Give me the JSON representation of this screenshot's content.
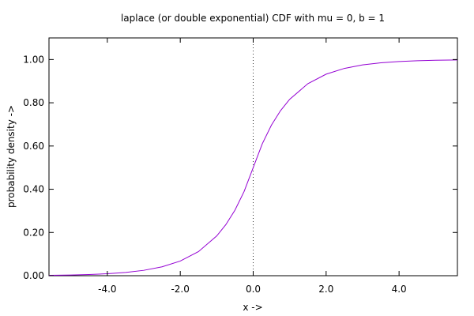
{
  "chart_data": {
    "type": "line",
    "title": "laplace (or double exponential) CDF with mu = 0, b = 1",
    "xlabel": "x ->",
    "ylabel": "probability density ->",
    "xlim": [
      -5.6,
      5.6
    ],
    "ylim": [
      0,
      1.1
    ],
    "x_ticks": [
      -4,
      -2,
      0,
      2,
      4
    ],
    "x_tick_labels": [
      "-4.0",
      "-2.0",
      "0.0",
      "2.0",
      "4.0"
    ],
    "y_ticks": [
      0,
      0.2,
      0.4,
      0.6,
      0.8,
      1.0
    ],
    "y_tick_labels": [
      "0.00",
      "0.20",
      "0.40",
      "0.60",
      "0.80",
      "1.00"
    ],
    "grid": false,
    "reference_line": {
      "x": 0,
      "style": "dotted"
    },
    "series": [
      {
        "color": "#9400d3",
        "x": [
          -5.6,
          -5.0,
          -4.5,
          -4.0,
          -3.5,
          -3.0,
          -2.5,
          -2.0,
          -1.5,
          -1.0,
          -0.75,
          -0.5,
          -0.25,
          0.0,
          0.25,
          0.5,
          0.75,
          1.0,
          1.5,
          2.0,
          2.5,
          3.0,
          3.5,
          4.0,
          4.5,
          5.0,
          5.6
        ],
        "y": [
          0.0018,
          0.0034,
          0.0056,
          0.0092,
          0.0151,
          0.0249,
          0.041,
          0.0677,
          0.1116,
          0.1839,
          0.2362,
          0.3033,
          0.3894,
          0.5,
          0.6106,
          0.6967,
          0.7638,
          0.8161,
          0.8884,
          0.9323,
          0.959,
          0.9751,
          0.9849,
          0.9908,
          0.9944,
          0.9966,
          0.9982
        ]
      }
    ]
  }
}
